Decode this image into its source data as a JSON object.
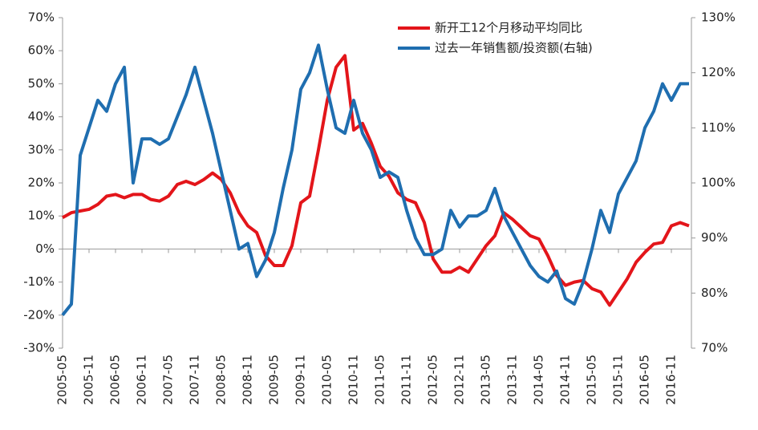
{
  "chart_data": {
    "type": "line",
    "categories": [
      "2005-05",
      null,
      null,
      "2005-11",
      null,
      null,
      "2006-05",
      null,
      null,
      "2006-11",
      null,
      null,
      "2007-05",
      null,
      null,
      "2007-11",
      null,
      null,
      "2008-05",
      null,
      null,
      "2008-11",
      null,
      null,
      "2009-05",
      null,
      null,
      "2009-11",
      null,
      null,
      "2010-05",
      null,
      null,
      "2010-11",
      null,
      null,
      "2011-05",
      null,
      null,
      "2011-11",
      null,
      null,
      "2012-05",
      null,
      null,
      "2012-11",
      null,
      null,
      "2013-05",
      null,
      null,
      "2013-11",
      null,
      null,
      "2014-05",
      null,
      null,
      "2014-11",
      null,
      null,
      "2015-05",
      null,
      null,
      "2015-11",
      null,
      null,
      "2016-05",
      null,
      null,
      "2016-11",
      null,
      null
    ],
    "series": [
      {
        "name": "新开工12个月移动平均同比",
        "color": "#e3151a",
        "values": [
          9.5,
          11,
          11.5,
          12,
          13.5,
          16,
          16.5,
          15.5,
          16.5,
          16.5,
          15,
          14.5,
          16,
          19.5,
          20.5,
          19.5,
          21,
          23,
          21,
          17,
          11,
          7,
          5,
          -2,
          -5,
          -5,
          1,
          14,
          16,
          30,
          45,
          55,
          58.5,
          36,
          38,
          32,
          25,
          22,
          17,
          15,
          14,
          8,
          -3,
          -7,
          -7,
          -5.5,
          -7,
          -3,
          1,
          4,
          11,
          9,
          6.5,
          4,
          3,
          -2,
          -8,
          -11,
          -10,
          -9.5,
          -12,
          -13,
          -17,
          -13,
          -9,
          -4,
          -1,
          1.5,
          2,
          7,
          8,
          7
        ]
      },
      {
        "name": "过去一年销售额/投资额(右轴)",
        "color": "#1f6eb0",
        "axis": "y2",
        "values": [
          76,
          78,
          105,
          110,
          115,
          113,
          118,
          121,
          100,
          108,
          108,
          107,
          108,
          112,
          116,
          121,
          115,
          109,
          102,
          95,
          88,
          89,
          83,
          86,
          91,
          99,
          106,
          117,
          120,
          125,
          117,
          110,
          109,
          115,
          109,
          106,
          101,
          102,
          101,
          95,
          90,
          87,
          87,
          88,
          95,
          92,
          94,
          94,
          95,
          99,
          94,
          91,
          88,
          85,
          83,
          82,
          84,
          79,
          78,
          82,
          88,
          95,
          91,
          98,
          101,
          104,
          110,
          113,
          118,
          115,
          118,
          118
        ]
      }
    ],
    "ylim": [
      -30,
      70
    ],
    "yticks": [
      {
        "value": -30,
        "label": "-30%"
      },
      {
        "value": -20,
        "label": "-20%"
      },
      {
        "value": -10,
        "label": "-10%"
      },
      {
        "value": 0,
        "label": "0%"
      },
      {
        "value": 10,
        "label": "10%"
      },
      {
        "value": 20,
        "label": "20%"
      },
      {
        "value": 30,
        "label": "30%"
      },
      {
        "value": 40,
        "label": "40%"
      },
      {
        "value": 50,
        "label": "50%"
      },
      {
        "value": 60,
        "label": "60%"
      },
      {
        "value": 70,
        "label": "70%"
      }
    ],
    "y2lim": [
      70,
      130
    ],
    "y2ticks": [
      {
        "value": 70,
        "label": "70%"
      },
      {
        "value": 80,
        "label": "80%"
      },
      {
        "value": 90,
        "label": "90%"
      },
      {
        "value": 100,
        "label": "100%"
      },
      {
        "value": 110,
        "label": "110%"
      },
      {
        "value": 120,
        "label": "120%"
      },
      {
        "value": 130,
        "label": "130%"
      }
    ],
    "legend": "upper-right"
  }
}
